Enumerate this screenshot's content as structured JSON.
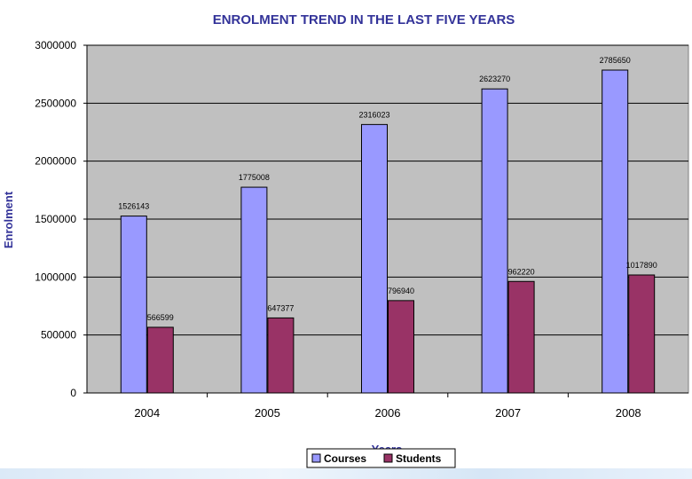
{
  "chart_data": {
    "type": "bar",
    "title": "ENROLMENT TREND IN THE LAST FIVE YEARS",
    "xlabel": "Years",
    "ylabel": "Enrolment",
    "categories": [
      "2004",
      "2005",
      "2006",
      "2007",
      "2008"
    ],
    "series": [
      {
        "name": "Courses",
        "values": [
          1526143,
          1775008,
          2316023,
          2623270,
          2785650
        ],
        "color": "#9999ff"
      },
      {
        "name": "Students",
        "values": [
          566599,
          647377,
          796940,
          962220,
          1017890
        ],
        "color": "#993366"
      }
    ],
    "ylim": [
      0,
      3000000
    ],
    "yticks": [
      0,
      500000,
      1000000,
      1500000,
      2000000,
      2500000,
      3000000
    ],
    "ytick_labels": [
      "0",
      "500000",
      "1000000",
      "1500000",
      "2000000",
      "2500000",
      "3000000"
    ],
    "grid": true,
    "legend_position": "bottom",
    "plot_background": "#c0c0c0",
    "title_color": "#333399",
    "axis_title_color": "#333399"
  }
}
